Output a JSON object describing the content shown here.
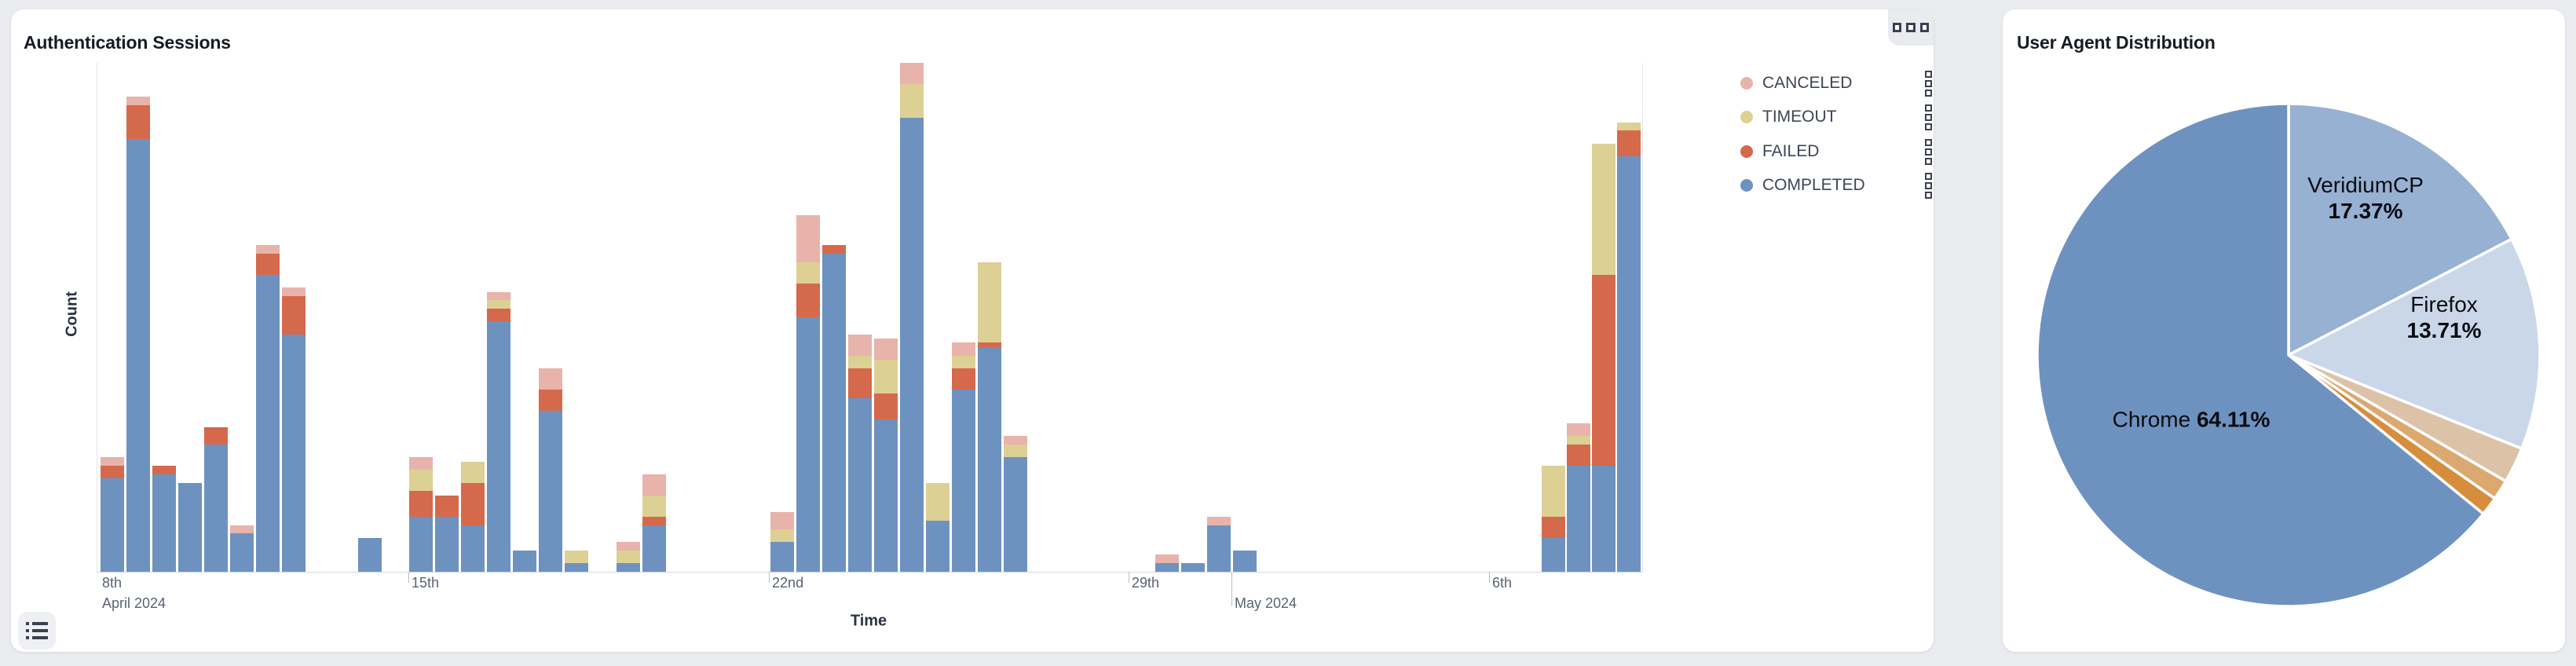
{
  "sessions_card": {
    "title": "Authentication Sessions",
    "xlabel": "Time",
    "ylabel": "Count",
    "corner_menu_icon": "grid-squares-icon",
    "footer_icon": "list-icon"
  },
  "useragent_card": {
    "title": "User Agent Distribution"
  },
  "colors": {
    "page_bg": "#eaecef",
    "card_bg": "#ffffff",
    "completed": "#6d92c0",
    "failed": "#d5694c",
    "timeout": "#ddd094",
    "canceled": "#e8b3aa",
    "pie_chrome": "#6e92c0",
    "pie_veridiumcp": "#97b1d2",
    "pie_firefox": "#c9d7e9",
    "pie_slice_4": "#dcc3a8",
    "pie_slice_5": "#dba96f",
    "pie_slice_6": "#d68e3c",
    "tick_text": "#596274",
    "axis_line": "#d5d7db"
  },
  "chart_data": [
    {
      "type": "bar",
      "stacked": true,
      "title": "Authentication Sessions",
      "xlabel": "Time",
      "ylabel": "Count",
      "ylim": [
        0,
        120
      ],
      "grid": false,
      "legend_position": "right-top",
      "legend": [
        {
          "key": "x",
          "label": "CANCELED",
          "color": "#e8b3aa"
        },
        {
          "key": "t",
          "label": "TIMEOUT",
          "color": "#ddd094"
        },
        {
          "key": "f",
          "label": "FAILED",
          "color": "#d5694c"
        },
        {
          "key": "c",
          "label": "COMPLETED",
          "color": "#6d92c0"
        }
      ],
      "stack_order_bottom_to_top": [
        "c",
        "f",
        "t",
        "x"
      ],
      "bar_fields": {
        "p": "left position, % of plot width",
        "c": "COMPLETED",
        "f": "FAILED",
        "t": "TIMEOUT",
        "x": "CANCELED"
      },
      "bar_width_pct": 1.525,
      "x_ticks": [
        {
          "pos": 0.15,
          "label": "8th",
          "sublabel": "April 2024",
          "line": false
        },
        {
          "pos": 20.18,
          "label": "15th"
        },
        {
          "pos": 43.52,
          "label": "22nd"
        },
        {
          "pos": 66.8,
          "label": "29th"
        },
        {
          "pos": 73.46,
          "label": "May 2024",
          "major": true
        },
        {
          "pos": 90.14,
          "label": "6th"
        }
      ],
      "bars": [
        {
          "p": 0.2,
          "c": 22,
          "f": 3,
          "t": 0,
          "x": 2
        },
        {
          "p": 1.88,
          "c": 102,
          "f": 8,
          "t": 0,
          "x": 2
        },
        {
          "p": 3.56,
          "c": 23,
          "f": 2,
          "t": 0,
          "x": 0
        },
        {
          "p": 5.24,
          "c": 21,
          "f": 0,
          "t": 0,
          "x": 0
        },
        {
          "p": 6.91,
          "c": 30,
          "f": 4,
          "t": 0,
          "x": 0
        },
        {
          "p": 8.59,
          "c": 9,
          "f": 0,
          "t": 0,
          "x": 2
        },
        {
          "p": 10.27,
          "c": 70,
          "f": 5,
          "t": 0,
          "x": 2
        },
        {
          "p": 11.95,
          "c": 56,
          "f": 9,
          "t": 0,
          "x": 2
        },
        {
          "p": 16.88,
          "c": 8,
          "f": 0,
          "t": 0,
          "x": 0
        },
        {
          "p": 20.18,
          "c": 13,
          "f": 6,
          "t": 5,
          "x": 3
        },
        {
          "p": 21.86,
          "c": 13,
          "f": 5,
          "t": 0,
          "x": 0
        },
        {
          "p": 23.54,
          "c": 11,
          "f": 10,
          "t": 5,
          "x": 0
        },
        {
          "p": 25.22,
          "c": 59,
          "f": 3,
          "t": 2,
          "x": 2
        },
        {
          "p": 26.89,
          "c": 5,
          "f": 0,
          "t": 0,
          "x": 0
        },
        {
          "p": 28.57,
          "c": 38,
          "f": 5,
          "t": 0,
          "x": 5
        },
        {
          "p": 30.25,
          "c": 2,
          "f": 0,
          "t": 3,
          "x": 0
        },
        {
          "p": 33.6,
          "c": 2,
          "f": 0,
          "t": 3,
          "x": 2
        },
        {
          "p": 35.28,
          "c": 11,
          "f": 2,
          "t": 5,
          "x": 5
        },
        {
          "p": 43.57,
          "c": 7,
          "f": 0,
          "t": 3,
          "x": 4
        },
        {
          "p": 45.25,
          "c": 60,
          "f": 8,
          "t": 5,
          "x": 11
        },
        {
          "p": 46.92,
          "c": 75,
          "f": 2,
          "t": 0,
          "x": 0
        },
        {
          "p": 48.6,
          "c": 41,
          "f": 7,
          "t": 3,
          "x": 5
        },
        {
          "p": 50.28,
          "c": 36,
          "f": 6,
          "t": 8,
          "x": 5
        },
        {
          "p": 51.96,
          "c": 107,
          "f": 0,
          "t": 8,
          "x": 5
        },
        {
          "p": 53.63,
          "c": 12,
          "f": 0,
          "t": 9,
          "x": 0
        },
        {
          "p": 55.31,
          "c": 43,
          "f": 5,
          "t": 3,
          "x": 3
        },
        {
          "p": 56.99,
          "c": 53,
          "f": 1,
          "t": 19,
          "x": 0
        },
        {
          "p": 58.67,
          "c": 27,
          "f": 0,
          "t": 3,
          "x": 2
        },
        {
          "p": 68.48,
          "c": 2,
          "f": 0,
          "t": 0,
          "x": 2
        },
        {
          "p": 70.16,
          "c": 2,
          "f": 0,
          "t": 0,
          "x": 0
        },
        {
          "p": 71.84,
          "c": 11,
          "f": 0,
          "t": 0,
          "x": 2
        },
        {
          "p": 73.51,
          "c": 5,
          "f": 0,
          "t": 0,
          "x": 0
        },
        {
          "p": 93.49,
          "c": 8,
          "f": 5,
          "t": 12,
          "x": 0
        },
        {
          "p": 95.12,
          "c": 25,
          "f": 5,
          "t": 2,
          "x": 3
        },
        {
          "p": 96.75,
          "c": 25,
          "f": 45,
          "t": 31,
          "x": 0
        },
        {
          "p": 98.37,
          "c": 98,
          "f": 6,
          "t": 2,
          "x": 0
        }
      ]
    },
    {
      "type": "pie",
      "title": "User Agent Distribution",
      "start_angle_deg": 0,
      "direction": "clockwise",
      "slices": [
        {
          "label": "VeridiumCP",
          "pct": 17.37,
          "color": "#97b1d2",
          "show_label": true,
          "label_layout": "stacked",
          "label_x": 462,
          "label_y": 240
        },
        {
          "label": "Firefox",
          "pct": 13.71,
          "color": "#c9d7e9",
          "show_label": true,
          "label_layout": "stacked",
          "label_x": 562,
          "label_y": 392
        },
        {
          "label": "",
          "pct": 2.3,
          "color": "#dcc3a8",
          "show_label": false
        },
        {
          "label": "",
          "pct": 1.3,
          "color": "#dba96f",
          "show_label": false
        },
        {
          "label": "",
          "pct": 1.21,
          "color": "#d68e3c",
          "show_label": false
        },
        {
          "label": "Chrome",
          "pct": 64.11,
          "color": "#6e92c0",
          "show_label": true,
          "label_layout": "inline",
          "label_x": 240,
          "label_y": 522
        }
      ]
    }
  ]
}
